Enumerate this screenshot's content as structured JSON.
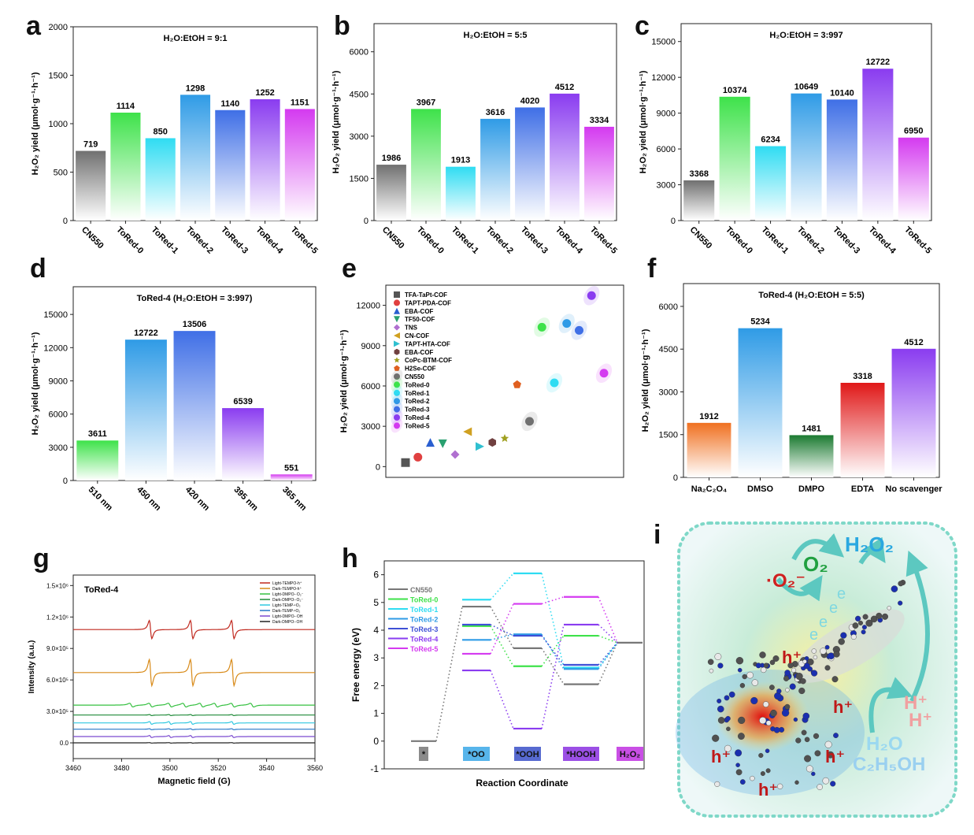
{
  "panel_letters": [
    "a",
    "b",
    "c",
    "d",
    "e",
    "f",
    "g",
    "h",
    "i"
  ],
  "chart_data": [
    {
      "panel": "a",
      "type": "bar",
      "title": "H₂O:EtOH = 9:1",
      "ylabel": "H₂O₂ yield (μmol·g⁻¹·h⁻¹)",
      "categories": [
        "CN550",
        "ToRed-0",
        "ToRed-1",
        "ToRed-2",
        "ToRed-3",
        "ToRed-4",
        "ToRed-5"
      ],
      "values": [
        719,
        1114,
        850,
        1298,
        1140,
        1252,
        1151
      ],
      "ylim": [
        0,
        2000
      ],
      "yticks": [
        0,
        500,
        1000,
        1500,
        2000
      ],
      "colors": [
        "#707070",
        "#3ee24a",
        "#2fdcf2",
        "#2f9be6",
        "#3f6fe6",
        "#8a3cf0",
        "#d43af0"
      ],
      "rotate_xticks": true
    },
    {
      "panel": "b",
      "type": "bar",
      "title": "H₂O:EtOH = 5:5",
      "ylabel": "H₂O₂ yield (μmol·g⁻¹·h⁻¹)",
      "categories": [
        "CN550",
        "ToRed-0",
        "ToRed-1",
        "ToRed-2",
        "ToRed-3",
        "ToRed-4",
        "ToRed-5"
      ],
      "values": [
        1986,
        3967,
        1913,
        3616,
        4020,
        4512,
        3334
      ],
      "ylim": [
        0,
        7000
      ],
      "yticks": [
        0,
        1500,
        3000,
        4500,
        6000
      ],
      "colors": [
        "#707070",
        "#3ee24a",
        "#2fdcf2",
        "#2f9be6",
        "#3f6fe6",
        "#8a3cf0",
        "#d43af0"
      ],
      "rotate_xticks": true
    },
    {
      "panel": "c",
      "type": "bar",
      "title": "H₂O:EtOH = 3:997",
      "ylabel": "H₂O₂ yield (μmol·g⁻¹·h⁻¹)",
      "categories": [
        "CN550",
        "ToRed-0",
        "ToRed-1",
        "ToRed-2",
        "ToRed-3",
        "ToRed-4",
        "ToRed-5"
      ],
      "values": [
        3368,
        10374,
        6234,
        10649,
        10140,
        12722,
        6950
      ],
      "ylim": [
        0,
        16500
      ],
      "yticks": [
        0,
        3000,
        6000,
        9000,
        12000,
        15000
      ],
      "colors": [
        "#707070",
        "#3ee24a",
        "#2fdcf2",
        "#2f9be6",
        "#3f6fe6",
        "#8a3cf0",
        "#d43af0"
      ],
      "rotate_xticks": true
    },
    {
      "panel": "d",
      "type": "bar",
      "title": "ToRed-4 (H₂O:EtOH = 3:997)",
      "ylabel": "H₂O₂ yield (μmol·g⁻¹·h⁻¹)",
      "categories": [
        "510 nm",
        "450 nm",
        "420 nm",
        "395 nm",
        "365 nm"
      ],
      "values": [
        3611,
        12722,
        13506,
        6539,
        551
      ],
      "ylim": [
        0,
        17500
      ],
      "yticks": [
        0,
        3000,
        6000,
        9000,
        12000,
        15000
      ],
      "colors": [
        "#3ee24a",
        "#2f9be6",
        "#3f6fe6",
        "#8a3cf0",
        "#d43af0"
      ],
      "rotate_xticks": true
    },
    {
      "panel": "e",
      "type": "scatter",
      "ylabel": "H₂O₂ yield (μmol·g⁻¹·h⁻¹)",
      "ylim": [
        -800,
        13500
      ],
      "yticks": [
        0,
        3000,
        6000,
        9000,
        12000
      ],
      "series": [
        {
          "name": "TFA-TaPt-COF",
          "marker": "square",
          "color": "#555555",
          "x": 1,
          "y": 300
        },
        {
          "name": "TAPT-PDA-COF",
          "marker": "circle",
          "color": "#e04040",
          "x": 2,
          "y": 700
        },
        {
          "name": "EBA-COF",
          "marker": "triangle-up",
          "color": "#2a5fd0",
          "x": 3,
          "y": 1800
        },
        {
          "name": "TF50-COF",
          "marker": "triangle-down",
          "color": "#2aa070",
          "x": 4,
          "y": 1700
        },
        {
          "name": "TNS",
          "marker": "diamond",
          "color": "#b070d0",
          "x": 5,
          "y": 900
        },
        {
          "name": "CN-COF",
          "marker": "triangle-left",
          "color": "#d0a020",
          "x": 6,
          "y": 2600
        },
        {
          "name": "TAPT-HTA-COF",
          "marker": "triangle-right",
          "color": "#30c0d0",
          "x": 7,
          "y": 1500
        },
        {
          "name": "EBA-COF",
          "marker": "hexagon",
          "color": "#704040",
          "x": 8,
          "y": 1800
        },
        {
          "name": "CoPc-BTM-COF",
          "marker": "star",
          "color": "#a0a020",
          "x": 9,
          "y": 2100
        },
        {
          "name": "H2Se-COF",
          "marker": "pentagon",
          "color": "#e06020",
          "x": 10,
          "y": 6100
        },
        {
          "name": "CN550",
          "marker": "ball",
          "color": "#707070",
          "x": 11,
          "y": 3368
        },
        {
          "name": "ToRed-0",
          "marker": "ball",
          "color": "#3ee24a",
          "x": 12,
          "y": 10374
        },
        {
          "name": "ToRed-1",
          "marker": "ball",
          "color": "#2fdcf2",
          "x": 13,
          "y": 6234
        },
        {
          "name": "ToRed-2",
          "marker": "ball",
          "color": "#2f9be6",
          "x": 14,
          "y": 10649
        },
        {
          "name": "ToRed-3",
          "marker": "ball",
          "color": "#3f6fe6",
          "x": 15,
          "y": 10140
        },
        {
          "name": "ToRed-4",
          "marker": "ball",
          "color": "#8a3cf0",
          "x": 16,
          "y": 12722
        },
        {
          "name": "ToRed-5",
          "marker": "ball",
          "color": "#d43af0",
          "x": 17,
          "y": 6950
        }
      ]
    },
    {
      "panel": "f",
      "type": "bar",
      "title": "ToRed-4 (H₂O:EtOH = 5:5)",
      "ylabel": "H₂O₂ yield (μmol·g⁻¹·h⁻¹)",
      "categories": [
        "Na₂C₂O₄",
        "DMSO",
        "DMPO",
        "EDTA",
        "No scavenger"
      ],
      "values": [
        1912,
        5234,
        1481,
        3318,
        4512
      ],
      "ylim": [
        0,
        6800
      ],
      "yticks": [
        0,
        1500,
        3000,
        4500,
        6000
      ],
      "colors": [
        "#f07020",
        "#2f9be6",
        "#1a7a30",
        "#e01818",
        "#8a3cf0"
      ],
      "rotate_xticks": false
    },
    {
      "panel": "g",
      "type": "line",
      "title": "ToRed-4",
      "xlabel": "Magnetic field (G)",
      "ylabel": "Intensity (a.u.)",
      "xlim": [
        3460,
        3560
      ],
      "xticks": [
        3460,
        3480,
        3500,
        3520,
        3540,
        3560
      ],
      "ylim": [
        -150000,
        1600000
      ],
      "yticks": [
        0,
        300000,
        600000,
        900000,
        1200000,
        1500000
      ],
      "ytick_labels": [
        "0.0",
        "3.0×10⁵",
        "6.0×10⁵",
        "9.0×10⁵",
        "1.2×10⁶",
        "1.5×10⁶"
      ],
      "series": [
        {
          "name": "Light-TEMPO-h⁺",
          "color": "#c0281e",
          "offset": 1080000,
          "kind": "triplet",
          "amp": 160000
        },
        {
          "name": "Dark-TEMPO-h⁺",
          "color": "#d88a18",
          "offset": 670000,
          "kind": "triplet",
          "amp": 230000
        },
        {
          "name": "Light-DMPO-·O₂⁻",
          "color": "#35c040",
          "offset": 360000,
          "kind": "multi",
          "amp": 55000
        },
        {
          "name": "Dark-DMPO-·O₂⁻",
          "color": "#1f8a38",
          "offset": 265000,
          "kind": "small",
          "amp": 8000
        },
        {
          "name": "Light-TEMP-¹O₂",
          "color": "#30c8e0",
          "offset": 190000,
          "kind": "small",
          "amp": 22000
        },
        {
          "name": "Dark-TEMP-¹O₂",
          "color": "#2878c8",
          "offset": 130000,
          "kind": "small",
          "amp": 8000
        },
        {
          "name": "Light-DMPO-·OH",
          "color": "#7a4ad0",
          "offset": 60000,
          "kind": "small",
          "amp": 16000
        },
        {
          "name": "Dark-DMPO-·OH",
          "color": "#222222",
          "offset": 0,
          "kind": "small",
          "amp": 4000
        }
      ]
    },
    {
      "panel": "h",
      "type": "line",
      "xlabel": "Reaction Coordinate",
      "ylabel": "Free energy (eV)",
      "ylim": [
        -1,
        6.5
      ],
      "yticks": [
        -1,
        0,
        1,
        2,
        3,
        4,
        5,
        6
      ],
      "categories": [
        "*",
        "*OO",
        "*OOH",
        "*HOOH",
        "H₂O₂"
      ],
      "category_colors": [
        "#777777",
        "#3aa8e8",
        "#3a50c8",
        "#8a30e0",
        "#c030e0"
      ],
      "series": [
        {
          "name": "CN550",
          "color": "#777777",
          "values": [
            0,
            4.85,
            3.35,
            2.05,
            3.55
          ]
        },
        {
          "name": "ToRed-0",
          "color": "#3ee24a",
          "values": [
            0,
            4.15,
            2.7,
            3.8,
            3.55
          ]
        },
        {
          "name": "ToRed-1",
          "color": "#2fdcf2",
          "values": [
            0,
            5.1,
            6.05,
            2.65,
            3.55
          ]
        },
        {
          "name": "ToRed-2",
          "color": "#2f9be6",
          "values": [
            0,
            3.65,
            3.85,
            2.6,
            3.55
          ]
        },
        {
          "name": "ToRed-3",
          "color": "#3f50d6",
          "values": [
            0,
            4.2,
            3.8,
            2.75,
            3.55
          ]
        },
        {
          "name": "ToRed-4",
          "color": "#8a3cf0",
          "values": [
            0,
            2.55,
            0.45,
            4.2,
            3.55
          ]
        },
        {
          "name": "ToRed-5",
          "color": "#d43af0",
          "values": [
            0,
            3.15,
            4.95,
            5.2,
            3.55
          ]
        }
      ]
    }
  ],
  "schematic_i": {
    "products": "H₂O₂",
    "oxygen": "O₂",
    "superoxide": "·O₂⁻",
    "electrons": [
      "e",
      "e",
      "e",
      "e"
    ],
    "holes": [
      "h⁺",
      "h⁺",
      "h⁺",
      "h⁺",
      "h⁺"
    ],
    "water": "H₂O",
    "ethanol": "C₂H₅OH",
    "protons": "H⁺"
  }
}
